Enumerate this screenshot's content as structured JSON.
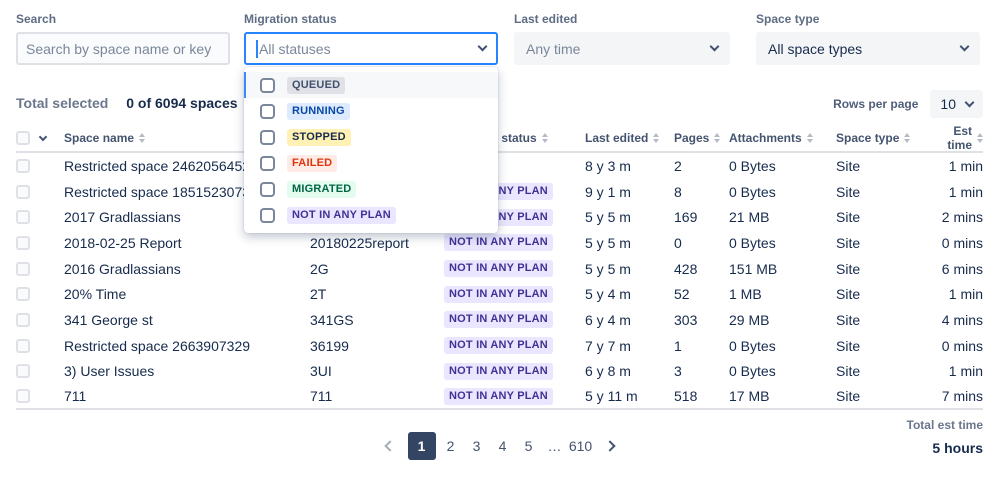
{
  "filters": {
    "search": {
      "label": "Search",
      "placeholder": "Search by space name or key",
      "value": ""
    },
    "migration_status": {
      "label": "Migration status",
      "value": "All statuses"
    },
    "last_edited": {
      "label": "Last edited",
      "value": "Any time"
    },
    "space_type": {
      "label": "Space type",
      "value": "All space types"
    }
  },
  "status_dropdown": {
    "options": [
      {
        "label": "QUEUED",
        "bg": "#DFE1E6",
        "color": "#42526E",
        "highlighted": true
      },
      {
        "label": "RUNNING",
        "bg": "#DEEBFF",
        "color": "#0747A6",
        "highlighted": false
      },
      {
        "label": "STOPPED",
        "bg": "#FFF0B3",
        "color": "#172B4D",
        "highlighted": false
      },
      {
        "label": "FAILED",
        "bg": "#FFEBE6",
        "color": "#DE350B",
        "highlighted": false
      },
      {
        "label": "MIGRATED",
        "bg": "#E3FCEF",
        "color": "#006644",
        "highlighted": false
      },
      {
        "label": "NOT IN ANY PLAN",
        "bg": "#EAE6FF",
        "color": "#403294",
        "highlighted": false
      }
    ]
  },
  "summary": {
    "label": "Total selected",
    "value": "0 of 6094 spaces"
  },
  "rows_per_page": {
    "label": "Rows per page",
    "value": "10"
  },
  "table": {
    "columns": {
      "space_name": "Space name",
      "key": "",
      "migration_status": "Migration status",
      "last_edited": "Last edited",
      "pages": "Pages",
      "attachments": "Attachments",
      "space_type": "Space type",
      "est_time": "Est time"
    },
    "rows": [
      {
        "name": "Restricted space 2462056452",
        "key": "",
        "status": "",
        "last_edited": "8 y 3 m",
        "pages": "2",
        "attachments": "0 Bytes",
        "space_type": "Site",
        "est_time": "1 min"
      },
      {
        "name": "Restricted space 1851523073",
        "key": "",
        "status": "NOT IN ANY PLAN",
        "last_edited": "9 y 1 m",
        "pages": "8",
        "attachments": "0 Bytes",
        "space_type": "Site",
        "est_time": "1 min"
      },
      {
        "name": "2017 Gradlassians",
        "key": "",
        "status": "NOT IN ANY PLAN",
        "last_edited": "5 y 5 m",
        "pages": "169",
        "attachments": "21 MB",
        "space_type": "Site",
        "est_time": "2 mins"
      },
      {
        "name": "2018-02-25 Report",
        "key": "20180225report",
        "status": "NOT IN ANY PLAN",
        "last_edited": "5 y 5 m",
        "pages": "0",
        "attachments": "0 Bytes",
        "space_type": "Site",
        "est_time": "0 mins"
      },
      {
        "name": "2016 Gradlassians",
        "key": "2G",
        "status": "NOT IN ANY PLAN",
        "last_edited": "5 y 5 m",
        "pages": "428",
        "attachments": "151 MB",
        "space_type": "Site",
        "est_time": "6 mins"
      },
      {
        "name": "20% Time",
        "key": "2T",
        "status": "NOT IN ANY PLAN",
        "last_edited": "5 y 4 m",
        "pages": "52",
        "attachments": "1 MB",
        "space_type": "Site",
        "est_time": "1 min"
      },
      {
        "name": "341 George st",
        "key": "341GS",
        "status": "NOT IN ANY PLAN",
        "last_edited": "6 y 4 m",
        "pages": "303",
        "attachments": "29 MB",
        "space_type": "Site",
        "est_time": "4 mins"
      },
      {
        "name": "Restricted space 2663907329",
        "key": "36199",
        "status": "NOT IN ANY PLAN",
        "last_edited": "7 y 7 m",
        "pages": "1",
        "attachments": "0 Bytes",
        "space_type": "Site",
        "est_time": "0 mins"
      },
      {
        "name": "3) User Issues",
        "key": "3UI",
        "status": "NOT IN ANY PLAN",
        "last_edited": "6 y 8 m",
        "pages": "3",
        "attachments": "0 Bytes",
        "space_type": "Site",
        "est_time": "1 min"
      },
      {
        "name": "711",
        "key": "711",
        "status": "NOT IN ANY PLAN",
        "last_edited": "5 y 11 m",
        "pages": "518",
        "attachments": "17 MB",
        "space_type": "Site",
        "est_time": "7 mins"
      }
    ]
  },
  "pagination": {
    "pages": [
      "1",
      "2",
      "3",
      "4",
      "5",
      "…",
      "610"
    ],
    "active": "1"
  },
  "totals": {
    "label": "Total est time",
    "value": "5 hours"
  },
  "colors": {
    "focus_border": "#2684FF",
    "active_page_bg": "#344563",
    "lozenge_not_in_any_plan_bg": "#EAE6FF",
    "lozenge_not_in_any_plan_text": "#403294"
  }
}
